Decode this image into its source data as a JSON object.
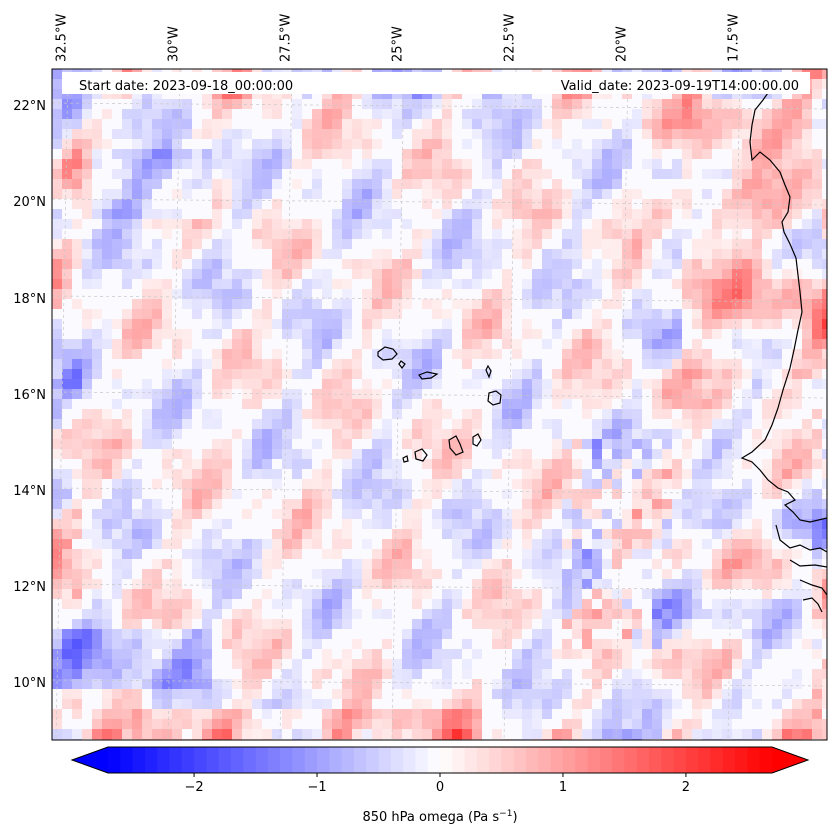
{
  "map": {
    "start_date_text": "Start date: 2023-09-18_00:00:00",
    "valid_date_text": "Valid_date: 2023-09-19T14:00:00.00",
    "field_variable": "850 hPa omega",
    "colormap": "bwr",
    "color_low": "#0000ff",
    "color_mid": "#ffffff",
    "color_high": "#ff0000",
    "coastline_color": "#000000",
    "gridlines": true,
    "longitude_labels": [
      {
        "value": -32.5,
        "label": "32.5°W"
      },
      {
        "value": -30.0,
        "label": "30°W"
      },
      {
        "value": -27.5,
        "label": "27.5°W"
      },
      {
        "value": -25.0,
        "label": "25°W"
      },
      {
        "value": -22.5,
        "label": "22.5°W"
      },
      {
        "value": -20.0,
        "label": "20°W"
      },
      {
        "value": -17.5,
        "label": "17.5°W"
      }
    ],
    "latitude_labels": [
      {
        "value": 22,
        "label": "22°N"
      },
      {
        "value": 20,
        "label": "20°N"
      },
      {
        "value": 18,
        "label": "18°N"
      },
      {
        "value": 16,
        "label": "16°N"
      },
      {
        "value": 14,
        "label": "14°N"
      },
      {
        "value": 12,
        "label": "12°N"
      },
      {
        "value": 10,
        "label": "10°N"
      }
    ]
  },
  "colorbar": {
    "label_main": "850 hPa omega (Pa s",
    "label_exp": "−1",
    "label_close": ")",
    "min": -2.7,
    "max": 2.7,
    "extend": "both",
    "ticks": [
      {
        "value": -2,
        "label": "−2"
      },
      {
        "value": -1,
        "label": "−1"
      },
      {
        "value": 0,
        "label": "0"
      },
      {
        "value": 1,
        "label": "1"
      },
      {
        "value": 2,
        "label": "2"
      }
    ]
  }
}
